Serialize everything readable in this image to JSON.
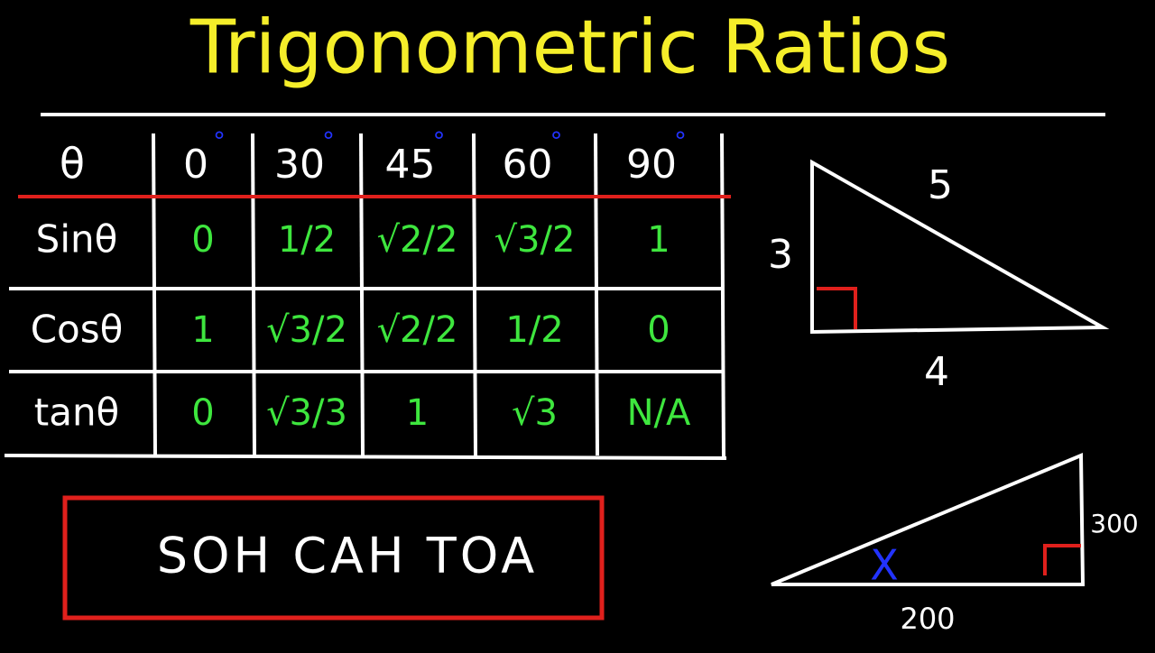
{
  "title": "Trigonometric Ratios",
  "table": {
    "header": {
      "theta": "θ",
      "angles": [
        "0",
        "30",
        "45",
        "60",
        "90"
      ],
      "unit": "°"
    },
    "rows": [
      {
        "label": "Sinθ",
        "values": [
          "0",
          "1/2",
          "√2/2",
          "√3/2",
          "1"
        ]
      },
      {
        "label": "Cosθ",
        "values": [
          "1",
          "√3/2",
          "√2/2",
          "1/2",
          "0"
        ]
      },
      {
        "label": "tanθ",
        "values": [
          "0",
          "√3/3",
          "1",
          "√3",
          "N/A"
        ]
      }
    ]
  },
  "triangle_1": {
    "left": "3",
    "hypotenuse": "5",
    "bottom": "4"
  },
  "triangle_2": {
    "right": "300",
    "bottom": "200",
    "angle": "X"
  },
  "mnemonic": "SOH CAH TOA"
}
